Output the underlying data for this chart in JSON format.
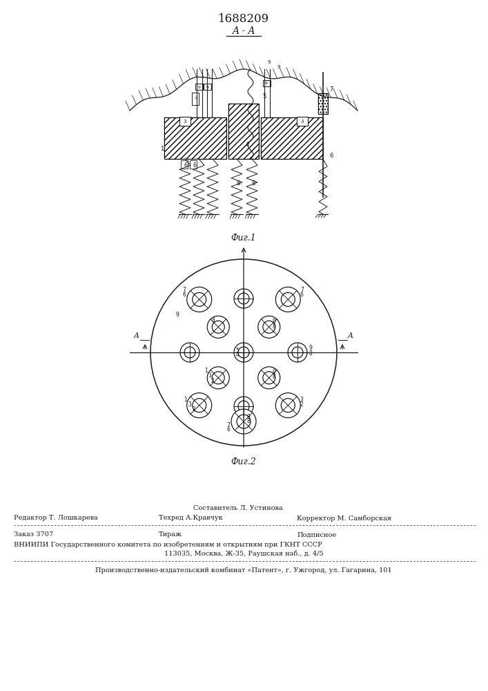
{
  "patent_number": "1688209",
  "fig1_label": "Фиг.1",
  "fig2_label": "Фиг.2",
  "section_label": "A - A",
  "bg_color": "#ffffff",
  "line_color": "#1a1a1a",
  "footer_line1_left": "Редактор Т. Лошкарева",
  "footer_line1_mid": "Техред А.Кравчук",
  "footer_line1_right": "Корректор М. Самборская",
  "footer_line0": "Составитель Л. Устинова",
  "footer_order": "Заказ 3707",
  "footer_tirazh": "Тираж",
  "footer_podp": "Подписное",
  "footer_vniip1": "ВНИИПИ Государственного комитета по изобретениям и открытиям при ГКНТ СССР",
  "footer_vniip2": "113035, Москва, Ж-35, Раушская наб., д. 4/5",
  "footer_patent": "Производственно-издательский комбинат «Патент», г. Ужгород, ул. Гагарина, 101"
}
